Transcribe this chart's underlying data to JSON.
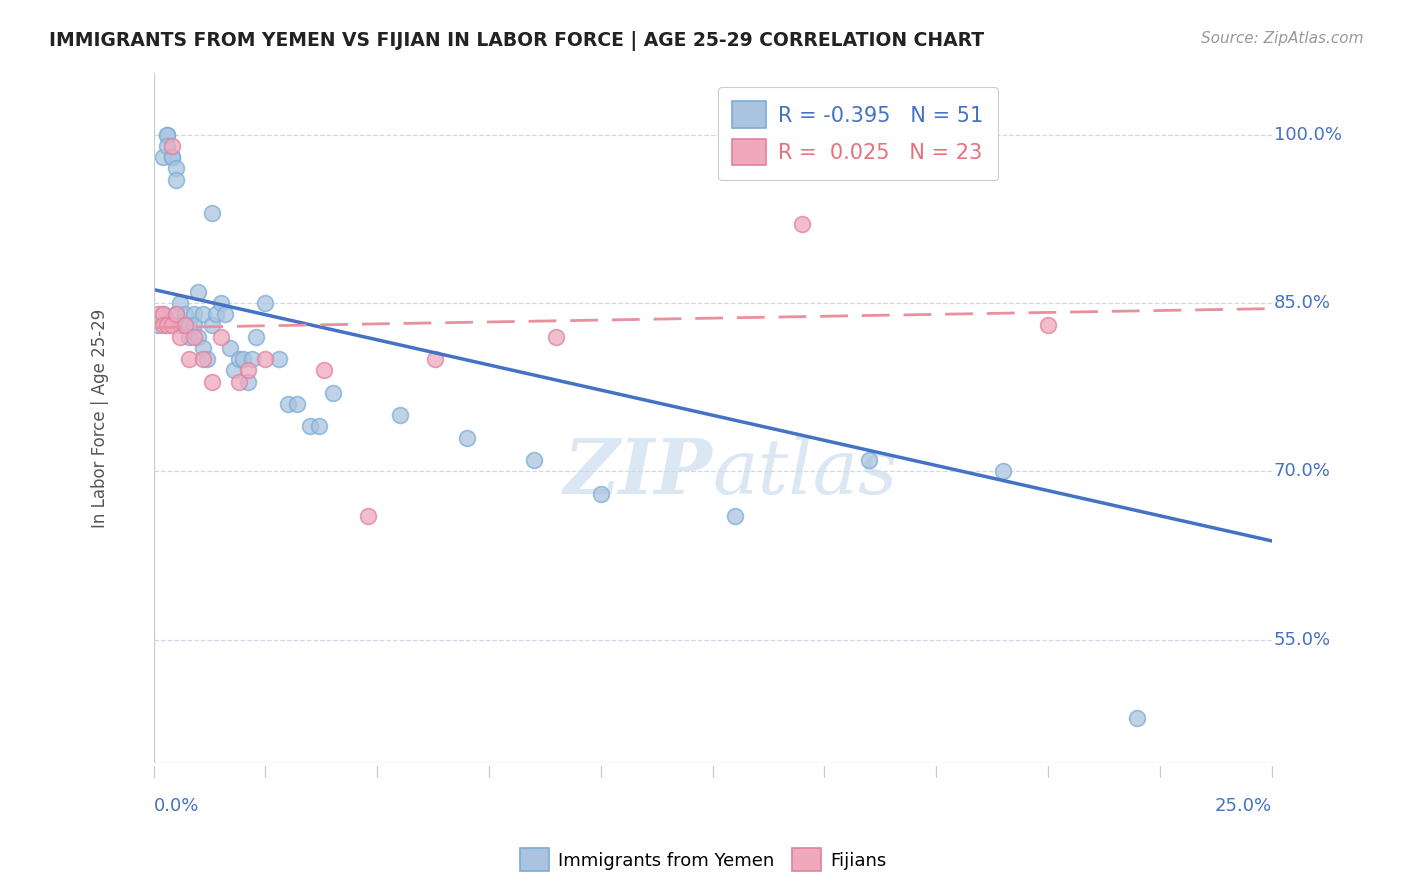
{
  "title": "IMMIGRANTS FROM YEMEN VS FIJIAN IN LABOR FORCE | AGE 25-29 CORRELATION CHART",
  "source": "Source: ZipAtlas.com",
  "ylabel": "In Labor Force | Age 25-29",
  "ytick_labels": [
    "55.0%",
    "70.0%",
    "85.0%",
    "100.0%"
  ],
  "ytick_values": [
    0.55,
    0.7,
    0.85,
    1.0
  ],
  "xlim": [
    0.0,
    0.25
  ],
  "ylim": [
    0.44,
    1.055
  ],
  "legend_R_yemen": "-0.395",
  "legend_N_yemen": "51",
  "legend_R_fijian": "0.025",
  "legend_N_fijian": "23",
  "yemen_color": "#aac4e0",
  "fijian_color": "#f0a8bc",
  "yemen_edge_color": "#7aadd4",
  "fijian_edge_color": "#e080a0",
  "yemen_line_color": "#4472c4",
  "fijian_line_color": "#e8909c",
  "watermark_color": "#c5d8ee",
  "grid_color": "#d0d8e8",
  "axis_color": "#cccccc",
  "title_color": "#222222",
  "source_color": "#999999",
  "ylabel_color": "#555555",
  "tick_label_color": "#4472c4",
  "legend_R_color_yemen": "#4472c4",
  "legend_R_color_fijian": "#e8707c",
  "yemen_line_y0": 0.862,
  "yemen_line_y1": 0.638,
  "fijian_line_y0": 0.828,
  "fijian_line_y1": 0.845,
  "yemen_x": [
    0.001,
    0.002,
    0.002,
    0.003,
    0.003,
    0.003,
    0.004,
    0.004,
    0.005,
    0.005,
    0.005,
    0.006,
    0.006,
    0.007,
    0.007,
    0.008,
    0.008,
    0.009,
    0.009,
    0.01,
    0.01,
    0.011,
    0.011,
    0.012,
    0.013,
    0.013,
    0.014,
    0.015,
    0.016,
    0.017,
    0.018,
    0.019,
    0.02,
    0.021,
    0.022,
    0.023,
    0.025,
    0.028,
    0.03,
    0.032,
    0.035,
    0.037,
    0.04,
    0.055,
    0.07,
    0.085,
    0.1,
    0.13,
    0.16,
    0.19,
    0.22
  ],
  "yemen_y": [
    0.83,
    0.84,
    0.98,
    1.0,
    1.0,
    0.99,
    0.98,
    0.98,
    0.97,
    0.96,
    0.84,
    0.85,
    0.83,
    0.84,
    0.83,
    0.83,
    0.82,
    0.84,
    0.83,
    0.86,
    0.82,
    0.84,
    0.81,
    0.8,
    0.93,
    0.83,
    0.84,
    0.85,
    0.84,
    0.81,
    0.79,
    0.8,
    0.8,
    0.78,
    0.8,
    0.82,
    0.85,
    0.8,
    0.76,
    0.76,
    0.74,
    0.74,
    0.77,
    0.75,
    0.73,
    0.71,
    0.68,
    0.66,
    0.71,
    0.7,
    0.48
  ],
  "fijian_x": [
    0.001,
    0.002,
    0.002,
    0.003,
    0.004,
    0.004,
    0.005,
    0.006,
    0.007,
    0.008,
    0.009,
    0.011,
    0.013,
    0.015,
    0.019,
    0.021,
    0.025,
    0.038,
    0.048,
    0.063,
    0.09,
    0.145,
    0.2
  ],
  "fijian_y": [
    0.84,
    0.84,
    0.83,
    0.83,
    0.99,
    0.83,
    0.84,
    0.82,
    0.83,
    0.8,
    0.82,
    0.8,
    0.78,
    0.82,
    0.78,
    0.79,
    0.8,
    0.79,
    0.66,
    0.8,
    0.82,
    0.92,
    0.83
  ]
}
